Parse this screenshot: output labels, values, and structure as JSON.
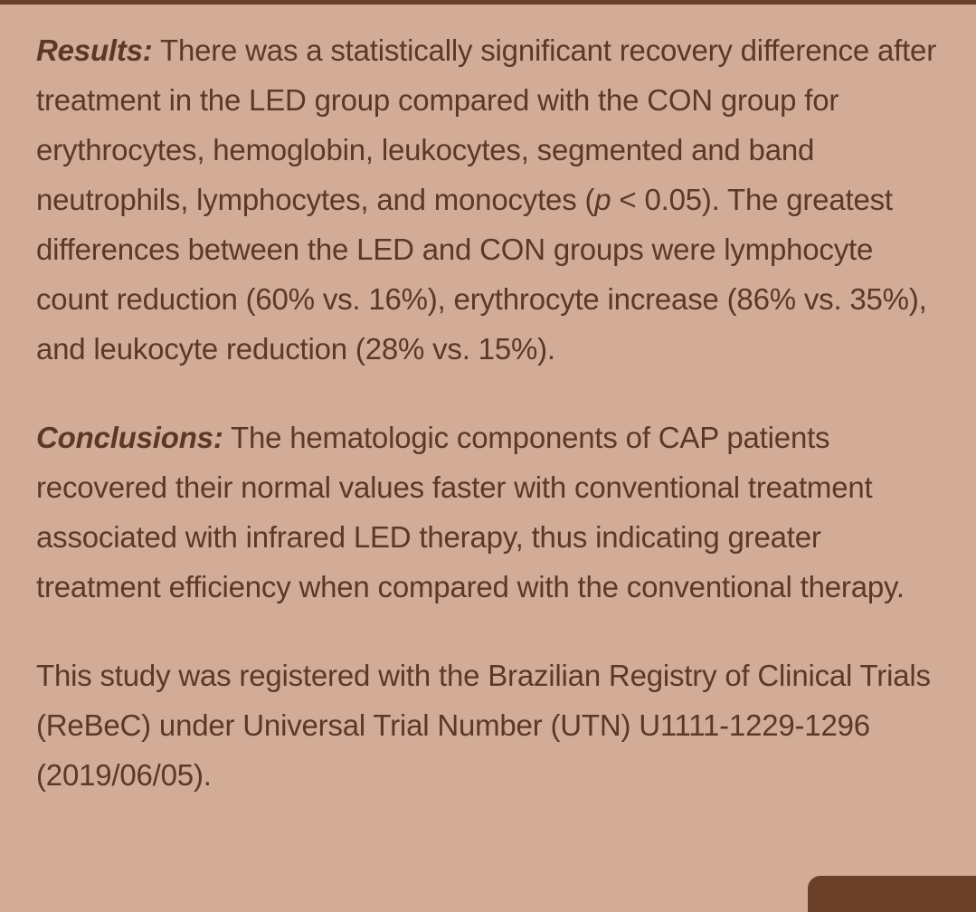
{
  "results": {
    "heading": "Results:",
    "text_1": " There was a statistically significant recovery difference after treatment in the LED group compared with the CON group for erythrocytes, hemoglobin, leukocytes, segmented and band neutrophils, lymphocytes, and monocytes (",
    "p_symbol": "p",
    "text_2": " < 0.05). The greatest differences between the LED and CON groups were lymphocyte count reduction (60% vs. 16%), erythrocyte increase (86% vs. 35%), and leukocyte reduction (28% vs. 15%)."
  },
  "conclusions": {
    "heading": "Conclusions:",
    "text": " The hematologic components of CAP patients recovered their normal values faster with conventional treatment associated with infrared LED therapy, thus indicating greater treatment efficiency when compared with the conventional therapy."
  },
  "registration": {
    "text": "This study was registered with the Brazilian Registry of Clinical Trials (ReBeC) under Universal Trial Number (UTN) U1111-1229-1296 (2019/06/05)."
  },
  "colors": {
    "background": "#d2ac97",
    "text": "#5b3926",
    "accent_bar": "#6b4028"
  }
}
